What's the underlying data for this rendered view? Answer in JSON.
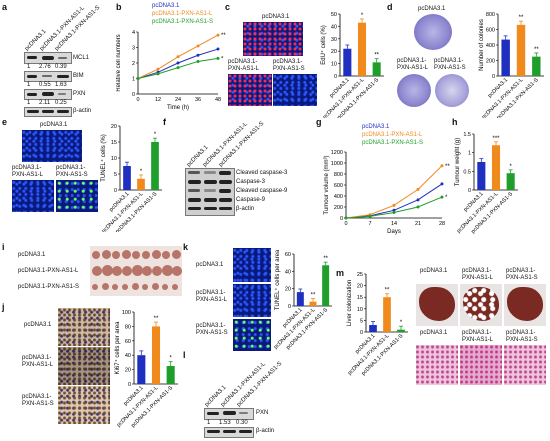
{
  "groups": [
    "pcDNA3.1",
    "pcDNA3.1-PXN-AS1-L",
    "pcDNA3.1-PXN-AS1-S"
  ],
  "group_labels_2line": {
    "l1": "pcDNA3.1-",
    "l2_L": "PXN-AS1-L",
    "l2_S": "PXN-AS1-S"
  },
  "colors": {
    "control": "#1f2fbf",
    "L": "#f08a1c",
    "S": "#1f9e2b"
  },
  "panel_labels": {
    "a": "a",
    "b": "b",
    "c": "c",
    "d": "d",
    "e": "e",
    "f": "f",
    "g": "g",
    "h": "h",
    "i": "i",
    "j": "j",
    "k": "k",
    "l": "l",
    "m": "m"
  },
  "panel_a": {
    "proteins": [
      "MCL1",
      "BIM",
      "PXN",
      "β-actin"
    ],
    "mcl1_values": [
      "1",
      "2.76",
      "0.39"
    ],
    "bim_values": [
      "1",
      "0.55",
      "1.63"
    ],
    "pxn_values": [
      "1",
      "2.11",
      "0.25"
    ]
  },
  "panel_f": {
    "proteins": [
      "Cleaved caspase-3",
      "Caspase-3",
      "Cleaved caspase-9",
      "Caspase-9",
      "β-actin"
    ]
  },
  "panel_l": {
    "proteins": [
      "PXN",
      "β-actin"
    ],
    "pxn_values": [
      "1",
      "1.53",
      "0.30"
    ]
  },
  "panel_i": {
    "rows": [
      "pcDNA3.1",
      "pcDNA3.1-PXN-AS1-L",
      "pcDNA3.1-PXN-AS1-S"
    ]
  },
  "sig": {
    "double": "**",
    "triple": "***",
    "single": "*"
  },
  "chart_data": [
    {
      "panel": "b",
      "type": "line",
      "ylabel": "Relative cell numbers",
      "xlabel": "Time (h)",
      "x": [
        0,
        12,
        24,
        36,
        48
      ],
      "ylim": [
        0,
        4
      ],
      "yticks": [
        0,
        1,
        2,
        3,
        4
      ],
      "series": [
        {
          "name": "pcDNA3.1",
          "values": [
            1.0,
            1.4,
            2.0,
            2.5,
            2.9
          ]
        },
        {
          "name": "pcDNA3.1-PXN-AS1-L",
          "values": [
            1.0,
            1.6,
            2.4,
            3.1,
            3.8
          ]
        },
        {
          "name": "pcDNA3.1-PXN-AS1-S",
          "values": [
            1.0,
            1.3,
            1.7,
            2.1,
            2.3
          ]
        }
      ]
    },
    {
      "panel": "c",
      "type": "bar",
      "ylabel": "EdU⁺ cells (%)",
      "ylim": [
        0,
        50
      ],
      "yticks": [
        0,
        10,
        20,
        30,
        40,
        50
      ],
      "categories": [
        "pcDNA3.1",
        "pcDNA3.1-PXN-AS1-L",
        "pcDNA3.1-PXN-AS1-S"
      ],
      "values": [
        22,
        43,
        11
      ]
    },
    {
      "panel": "d",
      "type": "bar",
      "ylabel": "Number of colonies",
      "ylim": [
        0,
        800
      ],
      "yticks": [
        0,
        200,
        400,
        600,
        800
      ],
      "categories": [
        "pcDNA3.1",
        "pcDNA3.1-PXN-AS1-L",
        "pcDNA3.1-PXN-AS1-S"
      ],
      "values": [
        470,
        660,
        250
      ]
    },
    {
      "panel": "e",
      "type": "bar",
      "ylabel": "TUNEL⁺ cells (%)",
      "ylim": [
        0,
        20
      ],
      "yticks": [
        0,
        5,
        10,
        15,
        20
      ],
      "categories": [
        "pcDNA3.1",
        "pcDNA3.1-PXN-AS1-L",
        "pcDNA3.1-PXN-AS1-S"
      ],
      "values": [
        7.5,
        3.5,
        15
      ]
    },
    {
      "panel": "g",
      "type": "line",
      "ylabel": "Tumour volume (mm³)",
      "xlabel": "Days",
      "x": [
        0,
        7,
        14,
        21,
        28
      ],
      "ylim": [
        0,
        1200
      ],
      "yticks": [
        0,
        200,
        400,
        600,
        800,
        1000,
        1200
      ],
      "series": [
        {
          "name": "pcDNA3.1",
          "values": [
            0,
            40,
            140,
            330,
            620
          ]
        },
        {
          "name": "pcDNA3.1-PXN-AS1-L",
          "values": [
            0,
            60,
            230,
            520,
            950
          ]
        },
        {
          "name": "pcDNA3.1-PXN-AS1-S",
          "values": [
            0,
            30,
            100,
            200,
            380
          ]
        }
      ]
    },
    {
      "panel": "h",
      "type": "bar",
      "ylabel": "Tumour weight (g)",
      "ylim": [
        0,
        1.5
      ],
      "yticks": [
        0,
        0.5,
        1.0,
        1.5
      ],
      "categories": [
        "pcDNA3.1",
        "pcDNA3.1-PXN-AS1-L",
        "pcDNA3.1-PXN-AS1-S"
      ],
      "values": [
        0.75,
        1.2,
        0.45
      ]
    },
    {
      "panel": "j",
      "type": "bar",
      "ylabel": "Ki67⁺ cells per area",
      "ylim": [
        0,
        100
      ],
      "yticks": [
        0,
        20,
        40,
        60,
        80,
        100
      ],
      "categories": [
        "pcDNA3.1",
        "pcDNA3.1-PXN-AS1-L",
        "pcDNA3.1-PXN-AS1-S"
      ],
      "values": [
        40,
        80,
        25
      ]
    },
    {
      "panel": "k",
      "type": "bar",
      "ylabel": "TUNEL⁺ cells per area",
      "ylim": [
        0,
        60
      ],
      "yticks": [
        0,
        20,
        40,
        60
      ],
      "categories": [
        "pcDNA3.1",
        "pcDNA3.1-PXN-AS1-L",
        "pcDNA3.1-PXN-AS1-S"
      ],
      "values": [
        16,
        5,
        47
      ]
    },
    {
      "panel": "m",
      "type": "bar",
      "ylabel": "Liver colonization",
      "ylim": [
        0,
        25
      ],
      "yticks": [
        0,
        5,
        10,
        15,
        20,
        25
      ],
      "categories": [
        "pcDNA3.1",
        "pcDNA3.1-PXN-AS1-L",
        "pcDNA3.1-PXN-AS1-S"
      ],
      "values": [
        3,
        15,
        1
      ]
    }
  ]
}
